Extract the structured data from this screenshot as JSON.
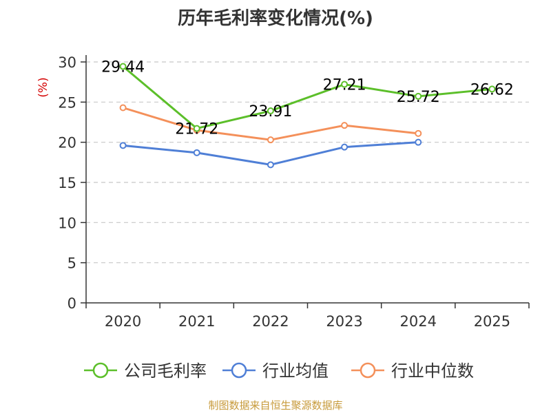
{
  "chart_data": {
    "type": "line",
    "title": "历年毛利率变化情况(%)",
    "ylabel": "(%)",
    "categories": [
      "2020",
      "2021",
      "2022",
      "2023",
      "2024",
      "2025"
    ],
    "ylim": [
      0,
      30
    ],
    "yticks": [
      "0",
      "5",
      "10",
      "15",
      "20",
      "25",
      "30"
    ],
    "grid": true,
    "legend_position": "bottom",
    "series": [
      {
        "name": "公司毛利率",
        "color": "#5cbf2a",
        "values": [
          29.44,
          21.72,
          23.91,
          27.21,
          25.72,
          26.62
        ],
        "labels": [
          "29.44",
          "21.72",
          "23.91",
          "27.21",
          "25.72",
          "26.62"
        ]
      },
      {
        "name": "行业均值",
        "color": "#4f7fd6",
        "values": [
          19.6,
          18.7,
          17.2,
          19.4,
          20.0,
          null
        ]
      },
      {
        "name": "行业中位数",
        "color": "#f4905a",
        "values": [
          24.3,
          21.5,
          20.3,
          22.1,
          21.1,
          null
        ]
      }
    ]
  },
  "footer": {
    "source": "制图数据来自恒生聚源数据库"
  }
}
